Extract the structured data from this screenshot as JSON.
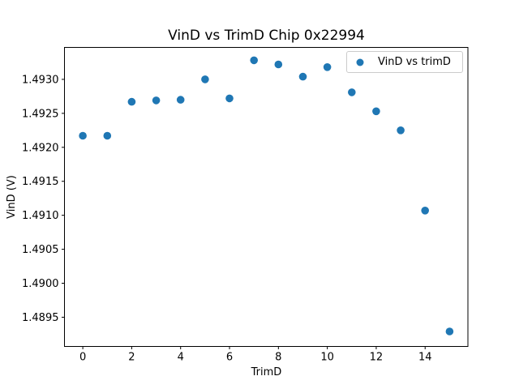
{
  "window": {
    "background": "#ffffff"
  },
  "colors": {
    "marker": "#1f77b4",
    "spine": "#000000",
    "tick": "#000000",
    "text": "#000000",
    "legend_border": "#cccccc",
    "background": "#ffffff"
  },
  "chart_data": {
    "type": "scatter",
    "title": "VinD vs TrimD Chip 0x22994",
    "xlabel": "TrimD",
    "ylabel": "VinD (V)",
    "grid": false,
    "xlim": [
      -0.75,
      15.75
    ],
    "ylim": [
      1.48907,
      1.49347
    ],
    "xticks": [
      0,
      2,
      4,
      6,
      8,
      10,
      12,
      14
    ],
    "xtick_labels": [
      "0",
      "2",
      "4",
      "6",
      "8",
      "10",
      "12",
      "14"
    ],
    "yticks": [
      1.4895,
      1.49,
      1.4905,
      1.491,
      1.4915,
      1.492,
      1.4925,
      1.493
    ],
    "ytick_labels": [
      "1.4895",
      "1.4900",
      "1.4905",
      "1.4910",
      "1.4915",
      "1.4920",
      "1.4925",
      "1.4930"
    ],
    "legend": {
      "position": "upper right",
      "entries": [
        "VinD vs trimD"
      ]
    },
    "series": [
      {
        "name": "VinD vs trimD",
        "marker": "circle",
        "color": "#1f77b4",
        "x": [
          0,
          1,
          2,
          3,
          4,
          5,
          6,
          7,
          8,
          9,
          10,
          11,
          12,
          13,
          14,
          15
        ],
        "y": [
          1.49217,
          1.49217,
          1.49267,
          1.49269,
          1.4927,
          1.493,
          1.49272,
          1.49328,
          1.49322,
          1.49304,
          1.49318,
          1.49281,
          1.49253,
          1.49225,
          1.49107,
          1.48929
        ]
      }
    ]
  }
}
